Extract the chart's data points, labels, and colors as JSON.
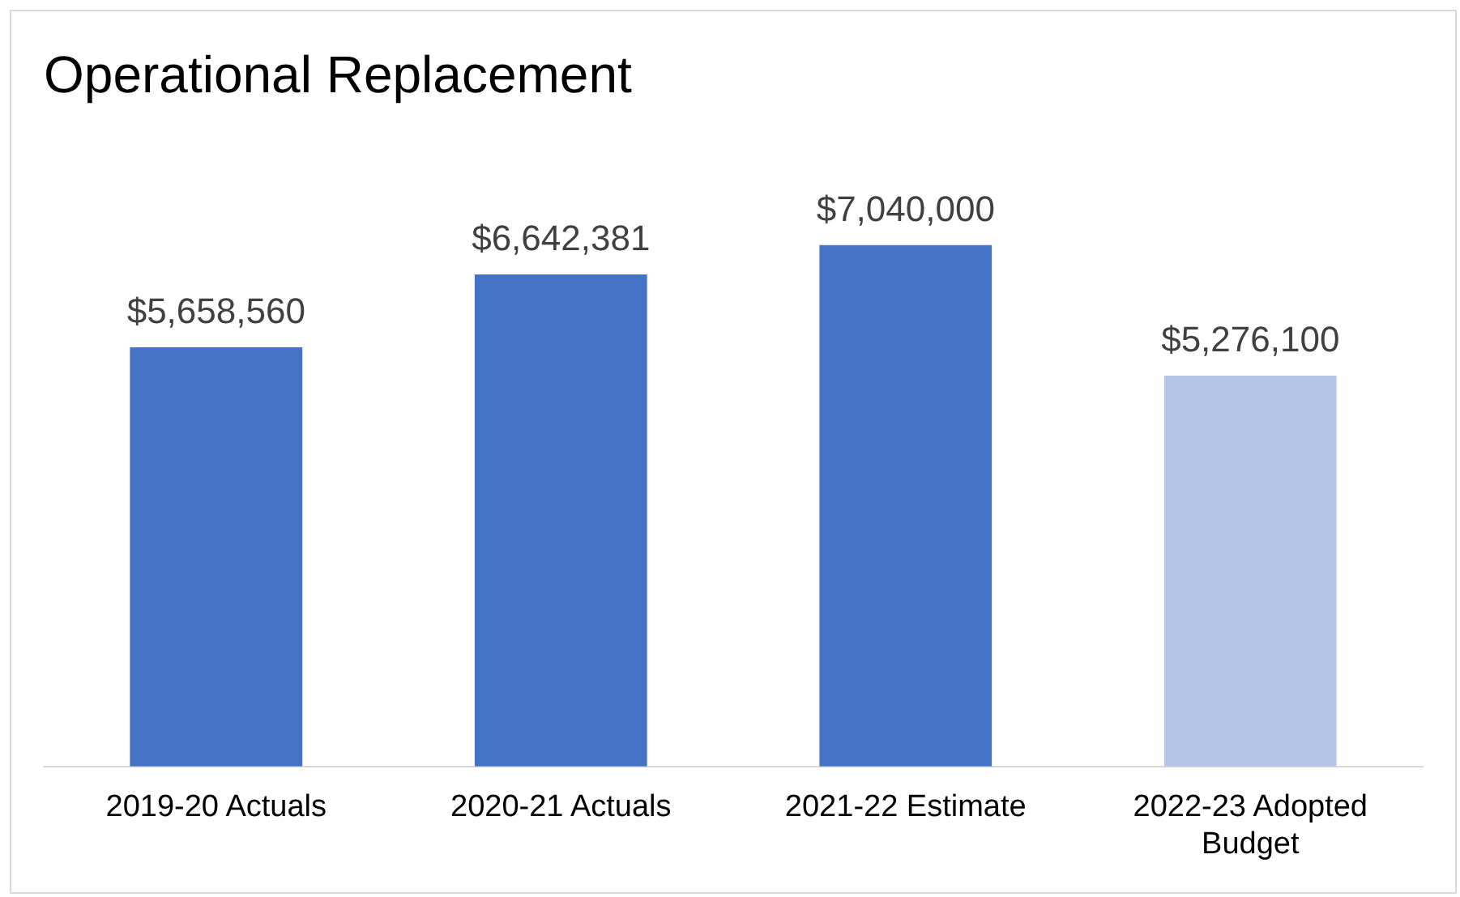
{
  "chart_data": {
    "type": "bar",
    "title": "Operational Replacement",
    "categories": [
      "2019-20 Actuals",
      "2020-21 Actuals",
      "2021-22 Estimate",
      "2022-23 Adopted Budget"
    ],
    "values": [
      5658560,
      6642381,
      7040000,
      5276100
    ],
    "colors": [
      "#4472c4",
      "#4472c4",
      "#4472c4",
      "#b4c7e7"
    ],
    "value_labels": [
      "$5,658,560",
      "$6,642,381",
      "$7,040,000",
      "$5,276,100"
    ],
    "grid": false,
    "legend": false
  }
}
